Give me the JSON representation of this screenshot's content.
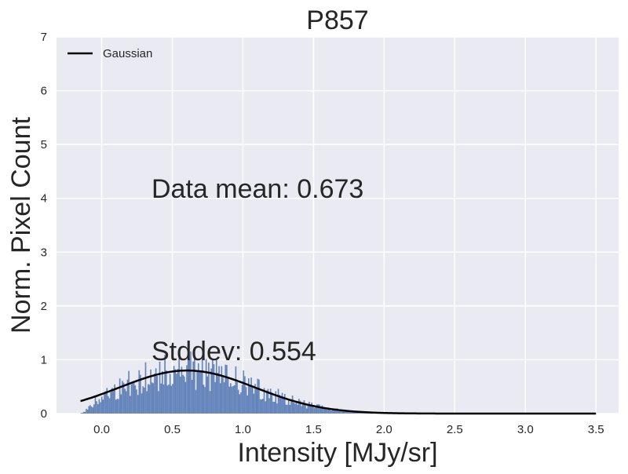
{
  "chart_data": {
    "type": "histogram",
    "title": "P857",
    "xlabel": "Intensity [MJy/sr]",
    "ylabel": "Norm. Pixel Count",
    "xlim": [
      -0.32,
      3.66
    ],
    "ylim": [
      0,
      7
    ],
    "x_ticks": [
      "0.0",
      "0.5",
      "1.0",
      "1.5",
      "2.0",
      "2.5",
      "3.0",
      "3.5"
    ],
    "y_ticks": [
      "0",
      "1",
      "2",
      "3",
      "4",
      "5",
      "6",
      "7"
    ],
    "grid": true,
    "background": "#eaeaf2",
    "bar_color": "#4c72b0",
    "line_color": "#000000",
    "legend": {
      "entries": [
        "Gaussian"
      ],
      "position": "top-left"
    },
    "annotations": {
      "mean_text": "Data mean: 0.673",
      "stddev_text": "Stddev: 0.554"
    },
    "histogram": {
      "range": [
        -0.15,
        3.5
      ],
      "bins": 400,
      "mean": 0.673,
      "stddev": 0.554,
      "approx_peak": 0.82
    },
    "series": [
      {
        "name": "Gaussian",
        "mean": 0.605,
        "stddev": 0.48,
        "amplitude": 0.8,
        "x_range": [
          -0.15,
          3.5
        ]
      }
    ]
  }
}
